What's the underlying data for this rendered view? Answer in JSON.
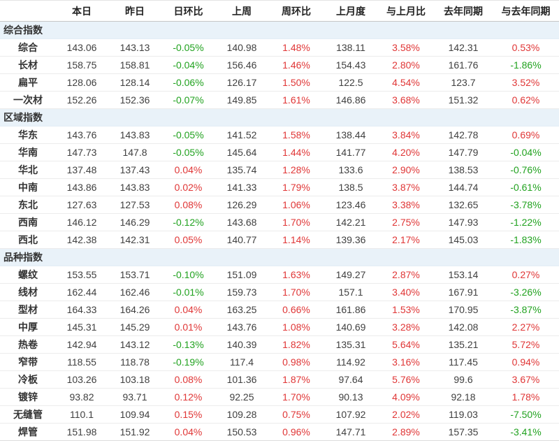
{
  "colors": {
    "positive": "#e03636",
    "negative": "#21a21f",
    "section_bg": "#e9f2f9",
    "header_border": "#c6c6c6",
    "row_border": "#ececec",
    "value_text": "#404040",
    "label_text": "#333333"
  },
  "table": {
    "row_label_header": "",
    "columns": [
      "本日",
      "昨日",
      "日环比",
      "上周",
      "周环比",
      "上月度",
      "与上月比",
      "去年同期",
      "与去年同期"
    ],
    "percent_column_indexes": [
      2,
      4,
      6,
      8
    ],
    "sections": [
      {
        "title": "综合指数",
        "rows": [
          {
            "label": "综合",
            "values": [
              "143.06",
              "143.13",
              "-0.05%",
              "140.98",
              "1.48%",
              "138.11",
              "3.58%",
              "142.31",
              "0.53%"
            ]
          },
          {
            "label": "长材",
            "values": [
              "158.75",
              "158.81",
              "-0.04%",
              "156.46",
              "1.46%",
              "154.43",
              "2.80%",
              "161.76",
              "-1.86%"
            ]
          },
          {
            "label": "扁平",
            "values": [
              "128.06",
              "128.14",
              "-0.06%",
              "126.17",
              "1.50%",
              "122.5",
              "4.54%",
              "123.7",
              "3.52%"
            ]
          },
          {
            "label": "一次材",
            "values": [
              "152.26",
              "152.36",
              "-0.07%",
              "149.85",
              "1.61%",
              "146.86",
              "3.68%",
              "151.32",
              "0.62%"
            ]
          }
        ]
      },
      {
        "title": "区域指数",
        "rows": [
          {
            "label": "华东",
            "values": [
              "143.76",
              "143.83",
              "-0.05%",
              "141.52",
              "1.58%",
              "138.44",
              "3.84%",
              "142.78",
              "0.69%"
            ]
          },
          {
            "label": "华南",
            "values": [
              "147.73",
              "147.8",
              "-0.05%",
              "145.64",
              "1.44%",
              "141.77",
              "4.20%",
              "147.79",
              "-0.04%"
            ]
          },
          {
            "label": "华北",
            "values": [
              "137.48",
              "137.43",
              "0.04%",
              "135.74",
              "1.28%",
              "133.6",
              "2.90%",
              "138.53",
              "-0.76%"
            ]
          },
          {
            "label": "中南",
            "values": [
              "143.86",
              "143.83",
              "0.02%",
              "141.33",
              "1.79%",
              "138.5",
              "3.87%",
              "144.74",
              "-0.61%"
            ]
          },
          {
            "label": "东北",
            "values": [
              "127.63",
              "127.53",
              "0.08%",
              "126.29",
              "1.06%",
              "123.46",
              "3.38%",
              "132.65",
              "-3.78%"
            ]
          },
          {
            "label": "西南",
            "values": [
              "146.12",
              "146.29",
              "-0.12%",
              "143.68",
              "1.70%",
              "142.21",
              "2.75%",
              "147.93",
              "-1.22%"
            ]
          },
          {
            "label": "西北",
            "values": [
              "142.38",
              "142.31",
              "0.05%",
              "140.77",
              "1.14%",
              "139.36",
              "2.17%",
              "145.03",
              "-1.83%"
            ]
          }
        ]
      },
      {
        "title": "品种指数",
        "rows": [
          {
            "label": "螺纹",
            "values": [
              "153.55",
              "153.71",
              "-0.10%",
              "151.09",
              "1.63%",
              "149.27",
              "2.87%",
              "153.14",
              "0.27%"
            ]
          },
          {
            "label": "线材",
            "values": [
              "162.44",
              "162.46",
              "-0.01%",
              "159.73",
              "1.70%",
              "157.1",
              "3.40%",
              "167.91",
              "-3.26%"
            ]
          },
          {
            "label": "型材",
            "values": [
              "164.33",
              "164.26",
              "0.04%",
              "163.25",
              "0.66%",
              "161.86",
              "1.53%",
              "170.95",
              "-3.87%"
            ]
          },
          {
            "label": "中厚",
            "values": [
              "145.31",
              "145.29",
              "0.01%",
              "143.76",
              "1.08%",
              "140.69",
              "3.28%",
              "142.08",
              "2.27%"
            ]
          },
          {
            "label": "热卷",
            "values": [
              "142.94",
              "143.12",
              "-0.13%",
              "140.39",
              "1.82%",
              "135.31",
              "5.64%",
              "135.21",
              "5.72%"
            ]
          },
          {
            "label": "窄带",
            "values": [
              "118.55",
              "118.78",
              "-0.19%",
              "117.4",
              "0.98%",
              "114.92",
              "3.16%",
              "117.45",
              "0.94%"
            ]
          },
          {
            "label": "冷板",
            "values": [
              "103.26",
              "103.18",
              "0.08%",
              "101.36",
              "1.87%",
              "97.64",
              "5.76%",
              "99.6",
              "3.67%"
            ]
          },
          {
            "label": "镀锌",
            "values": [
              "93.82",
              "93.71",
              "0.12%",
              "92.25",
              "1.70%",
              "90.13",
              "4.09%",
              "92.18",
              "1.78%"
            ]
          },
          {
            "label": "无缝管",
            "values": [
              "110.1",
              "109.94",
              "0.15%",
              "109.28",
              "0.75%",
              "107.92",
              "2.02%",
              "119.03",
              "-7.50%"
            ]
          },
          {
            "label": "焊管",
            "values": [
              "151.98",
              "151.92",
              "0.04%",
              "150.53",
              "0.96%",
              "147.71",
              "2.89%",
              "157.35",
              "-3.41%"
            ]
          }
        ]
      }
    ]
  }
}
